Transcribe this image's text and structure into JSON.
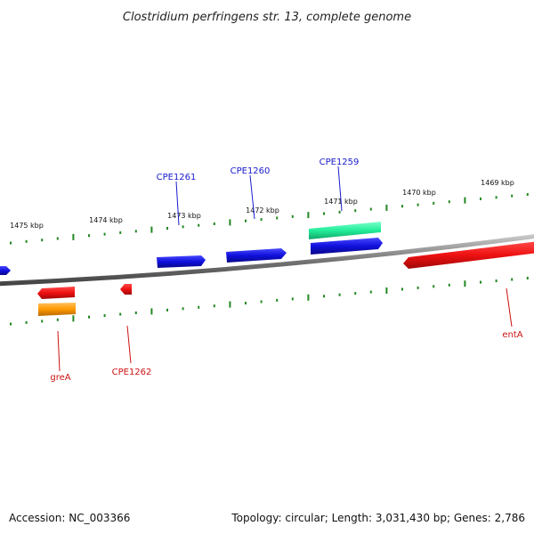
{
  "title": "Clostridium perfringens str. 13, complete genome",
  "footer": {
    "accession": "Accession: NC_003366",
    "summary": "Topology: circular; Length: 3,031,430 bp; Genes: 2,786"
  },
  "ticks": {
    "kbp_labels": [
      "1475 kbp",
      "1474 kbp",
      "1473 kbp",
      "1472 kbp",
      "1471 kbp",
      "1470 kbp",
      "1469 kbp"
    ]
  },
  "genes": {
    "forward_labels": [
      "CPE1261",
      "CPE1260",
      "CPE1259"
    ],
    "reverse_labels": [
      "greA",
      "CPE1262",
      "entA"
    ]
  },
  "colors": {
    "forward_gene": "#1010dd",
    "forward_highlight": "#22ee99",
    "reverse_gene": "#ee1111",
    "reverse_highlight": "#ff9900",
    "tick_mark": "#228822",
    "backbone": "#888888"
  }
}
